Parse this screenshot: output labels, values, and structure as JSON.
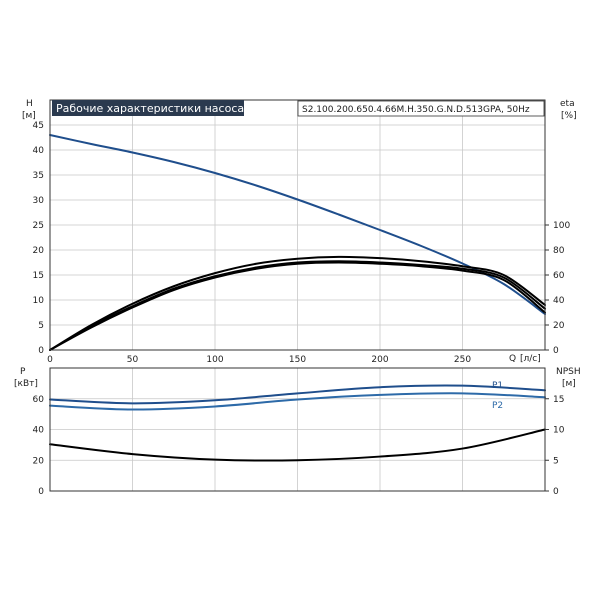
{
  "title": "Рабочие характеристики насоса",
  "model": "S2.100.200.650.4.66M.H.350.G.N.D.513GPA, 50Hz",
  "chart_data": [
    {
      "type": "line",
      "name": "upper",
      "x_label": "Q",
      "x_unit": "[л/с]",
      "x_range": [
        0,
        300
      ],
      "x_ticks": [
        0,
        50,
        100,
        150,
        200,
        250
      ],
      "y_left_label": "H",
      "y_left_unit": "[м]",
      "y_left_range": [
        0,
        50
      ],
      "y_left_ticks": [
        0,
        5,
        10,
        15,
        20,
        25,
        30,
        35,
        40,
        45
      ],
      "y_right_label": "eta",
      "y_right_unit": "[%]",
      "y_right_range": [
        0,
        200
      ],
      "y_right_ticks": [
        0,
        20,
        40,
        60,
        80,
        100
      ],
      "grid": true,
      "series": [
        {
          "axis": "left",
          "color": "#1f4e8c",
          "x": [
            0,
            25,
            50,
            75,
            100,
            125,
            150,
            175,
            200,
            225,
            250,
            275,
            300
          ],
          "y": [
            43,
            41.2,
            39.5,
            37.6,
            35.4,
            32.9,
            30.1,
            27.1,
            24,
            20.8,
            17.3,
            13.2,
            7.2
          ]
        },
        {
          "axis": "right",
          "color": "#000000",
          "x": [
            0,
            25,
            50,
            75,
            100,
            125,
            150,
            175,
            200,
            225,
            250,
            275,
            300
          ],
          "y": [
            0,
            19,
            35,
            49,
            59,
            66,
            70,
            71,
            70,
            68,
            65,
            58,
            33
          ]
        },
        {
          "axis": "right",
          "color": "#000000",
          "x": [
            0,
            25,
            50,
            75,
            100,
            125,
            150,
            175,
            200,
            225,
            250,
            275,
            300
          ],
          "y": [
            0,
            20,
            37,
            51,
            61.5,
            69,
            73,
            74.5,
            73.5,
            71,
            67,
            60,
            36
          ]
        },
        {
          "axis": "right",
          "color": "#000000",
          "x": [
            0,
            25,
            50,
            75,
            100,
            125,
            150,
            175,
            200,
            225,
            250,
            275,
            300
          ],
          "y": [
            0,
            18,
            34,
            48,
            58,
            65,
            69,
            70,
            69,
            67,
            63.5,
            56,
            30
          ]
        }
      ]
    },
    {
      "type": "line",
      "name": "lower",
      "x_range": [
        0,
        300
      ],
      "y_left_label": "P",
      "y_left_unit": "[кВт]",
      "y_left_range": [
        0,
        80
      ],
      "y_left_ticks": [
        0,
        20,
        40,
        60
      ],
      "y_right_label": "NPSH",
      "y_right_unit": "[м]",
      "y_right_range": [
        0,
        20
      ],
      "y_right_ticks": [
        0,
        5,
        10,
        15
      ],
      "grid": true,
      "series": [
        {
          "name": "P1",
          "axis": "left",
          "color": "#1f4e8c",
          "x": [
            0,
            50,
            100,
            150,
            200,
            250,
            300
          ],
          "y": [
            59.5,
            57,
            59,
            63.5,
            67.5,
            68.5,
            65.5
          ]
        },
        {
          "name": "P2",
          "axis": "left",
          "color": "#2d6aa8",
          "x": [
            0,
            50,
            100,
            150,
            200,
            250,
            300
          ],
          "y": [
            55.5,
            53,
            55,
            59.5,
            62.5,
            63.5,
            61
          ]
        },
        {
          "axis": "right",
          "color": "#000000",
          "x": [
            0,
            50,
            100,
            150,
            200,
            250,
            300
          ],
          "y": [
            7.6,
            6,
            5.1,
            5,
            5.6,
            6.9,
            10
          ]
        }
      ]
    }
  ]
}
